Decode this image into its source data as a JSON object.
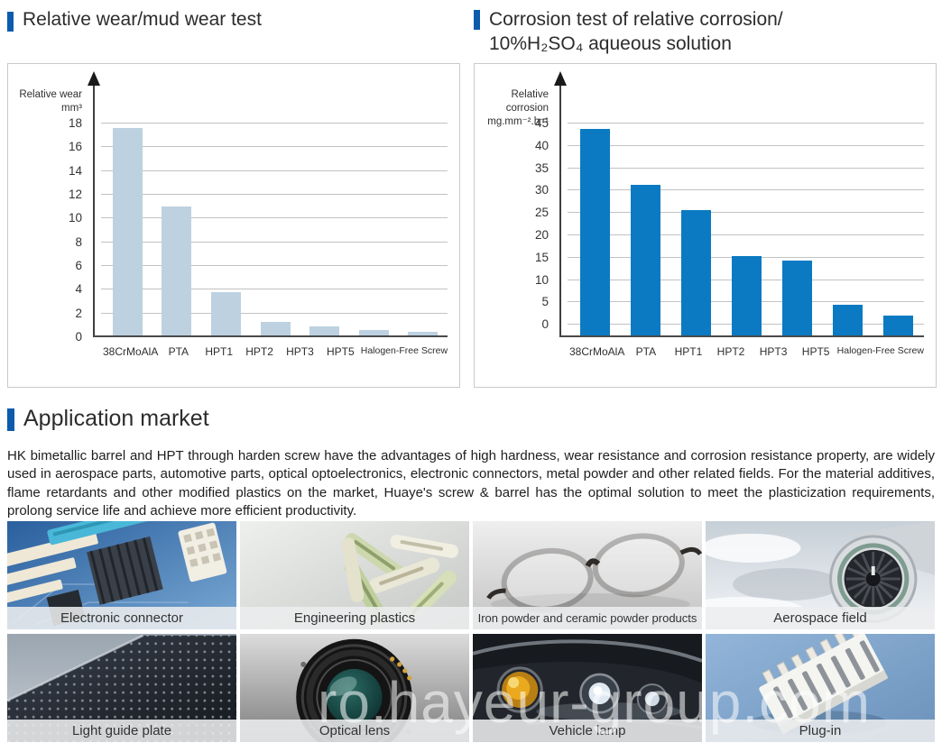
{
  "accent_color": "#0d5bad",
  "sections": {
    "wear_chart_title": "Relative wear/mud wear test",
    "corrosion_chart_title_line1": "Corrosion test of relative corrosion/",
    "corrosion_chart_title_line2": "10%H₂SO₄ aqueous solution",
    "application_title": "Application market",
    "application_paragraph": "HK bimetallic barrel and HPT through harden screw have the advantages of high hardness, wear resistance and corrosion resistance property, are widely used in aerospace parts, automotive parts, optical optoelectronics, electronic connectors, metal powder and other related fields. For the material additives, flame retardants and other modified plastics on the market, Huaye's screw & barrel has the optimal solution to meet the plasticization requirements, prolong service life and achieve more efficient productivity."
  },
  "chart_data": [
    {
      "type": "bar",
      "title": "Relative wear/mud wear test",
      "ylabel_line1": "Relative wear",
      "ylabel_line2": "mm³",
      "categories": [
        "38CrMoAlA",
        "PTA",
        "HPT1",
        "HPT2",
        "HPT3",
        "HPT5",
        "Halogen-Free Screw"
      ],
      "values": [
        17.6,
        11,
        3.8,
        1.3,
        0.9,
        0.6,
        0.45
      ],
      "ylim": [
        0,
        18
      ],
      "ystep": 2,
      "baseline_value": 0,
      "bar_color": "#bdd1e0",
      "grid": true,
      "legend": "none"
    },
    {
      "type": "bar",
      "title": "Corrosion test of relative corrosion/ 10%H₂SO₄ aqueous solution",
      "ylabel_line1": "Relative corrosion",
      "ylabel_line2": "mg.mm⁻².h⁻¹",
      "categories": [
        "38CrMoAlA",
        "PTA",
        "HPT1",
        "HPT2",
        "HPT3",
        "HPT5",
        "Halogen-Free Screw"
      ],
      "values": [
        43.8,
        31.2,
        25.6,
        15.4,
        14.3,
        4.4,
        2
      ],
      "ylim": [
        0,
        45
      ],
      "ystep": 5,
      "baseline_value": -2.8,
      "bar_color": "#0b7ac2",
      "grid": true,
      "legend": "none"
    }
  ],
  "tiles": [
    {
      "label": "Electronic connector",
      "image": "circuit-board-photo"
    },
    {
      "label": "Engineering plastics",
      "image": "plastic-pellets-photo"
    },
    {
      "label": "Iron powder and ceramic powder products",
      "image": "eyeglasses-photo"
    },
    {
      "label": "Aerospace field",
      "image": "jet-engine-photo"
    },
    {
      "label": "Light guide plate",
      "image": "light-guide-plate-photo"
    },
    {
      "label": "Optical lens",
      "image": "camera-lens-photo"
    },
    {
      "label": "Vehicle lamp",
      "image": "car-headlamp-photo"
    },
    {
      "label": "Plug-in",
      "image": "connector-plug-photo"
    }
  ],
  "watermark": "ro.hayeur-group.com"
}
